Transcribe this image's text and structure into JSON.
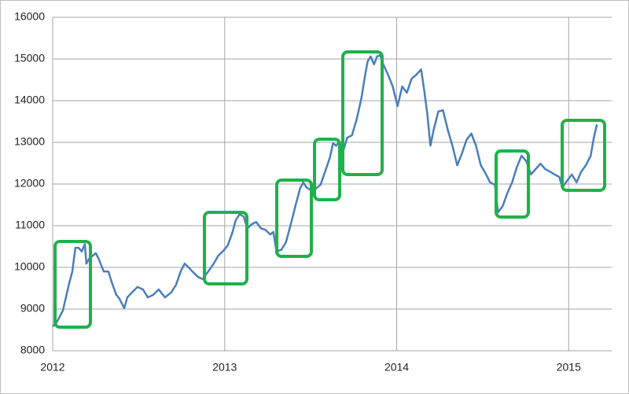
{
  "chart_data": {
    "type": "line",
    "color": "#4a7ebb",
    "grid": true,
    "xlim": [
      2012,
      2015.25
    ],
    "xticks": [
      2012,
      2013,
      2014,
      2015
    ],
    "ylim": [
      8000,
      16000
    ],
    "yticks": [
      8000,
      9000,
      10000,
      11000,
      12000,
      13000,
      14000,
      15000,
      16000
    ],
    "x": [
      2012.0,
      2012.023,
      2012.059,
      2012.096,
      2012.114,
      2012.132,
      2012.151,
      2012.169,
      2012.187,
      2012.196,
      2012.215,
      2012.233,
      2012.251,
      2012.269,
      2012.297,
      2012.324,
      2012.342,
      2012.37,
      2012.388,
      2012.416,
      2012.434,
      2012.461,
      2012.493,
      2012.525,
      2012.553,
      2012.584,
      2012.616,
      2012.653,
      2012.689,
      2012.717,
      2012.744,
      2012.767,
      2012.79,
      2012.813,
      2012.845,
      2012.872,
      2012.904,
      2012.936,
      2012.963,
      2012.995,
      2013.018,
      2013.046,
      2013.064,
      2013.087,
      2013.11,
      2013.132,
      2013.155,
      2013.183,
      2013.21,
      2013.237,
      2013.265,
      2013.283,
      2013.301,
      2013.329,
      2013.356,
      2013.384,
      2013.411,
      2013.438,
      2013.457,
      2013.475,
      2013.502,
      2013.53,
      2013.557,
      2013.584,
      2013.612,
      2013.63,
      2013.648,
      2013.667,
      2013.685,
      2013.712,
      2013.74,
      2013.767,
      2013.795,
      2013.813,
      2013.831,
      2013.849,
      2013.868,
      2013.886,
      2013.904,
      2013.922,
      2013.95,
      2013.977,
      2014.005,
      2014.032,
      2014.059,
      2014.087,
      2014.114,
      2014.142,
      2014.16,
      2014.178,
      2014.196,
      2014.215,
      2014.242,
      2014.269,
      2014.297,
      2014.324,
      2014.352,
      2014.379,
      2014.406,
      2014.434,
      2014.461,
      2014.489,
      2014.516,
      2014.543,
      2014.571,
      2014.589,
      2014.616,
      2014.644,
      2014.671,
      2014.699,
      2014.726,
      2014.753,
      2014.781,
      2014.808,
      2014.836,
      2014.863,
      2014.89,
      2014.918,
      2014.945,
      2014.963,
      2014.991,
      2015.018,
      2015.046,
      2015.073,
      2015.1,
      2015.128,
      2015.146,
      2015.164
    ],
    "values": [
      8585,
      8680,
      8960,
      9620,
      9900,
      10470,
      10470,
      10380,
      10560,
      10090,
      10230,
      10280,
      10340,
      10190,
      9900,
      9900,
      9660,
      9340,
      9250,
      9020,
      9280,
      9400,
      9530,
      9470,
      9280,
      9340,
      9470,
      9280,
      9400,
      9580,
      9900,
      10090,
      10000,
      9900,
      9770,
      9720,
      9900,
      10090,
      10280,
      10410,
      10530,
      10850,
      11130,
      11280,
      11220,
      10940,
      11030,
      11090,
      10940,
      10900,
      10790,
      10850,
      10380,
      10420,
      10600,
      11030,
      11470,
      11890,
      12040,
      11920,
      11850,
      11890,
      11980,
      12300,
      12640,
      12980,
      12920,
      13020,
      12730,
      13110,
      13170,
      13550,
      14060,
      14530,
      14940,
      15060,
      14870,
      15060,
      15090,
      14870,
      14620,
      14340,
      13870,
      14340,
      14190,
      14530,
      14620,
      14750,
      14250,
      13680,
      12920,
      13300,
      13740,
      13770,
      13300,
      12920,
      12450,
      12730,
      13060,
      13210,
      12920,
      12450,
      12260,
      12040,
      11980,
      11320,
      11470,
      11790,
      12040,
      12410,
      12680,
      12550,
      12230,
      12360,
      12490,
      12360,
      12300,
      12230,
      12170,
      11920,
      12080,
      12230,
      12040,
      12300,
      12450,
      12680,
      13110,
      13430
    ]
  }
}
